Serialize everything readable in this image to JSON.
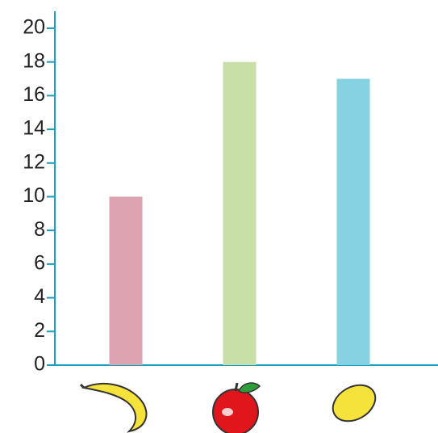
{
  "chart_data": {
    "type": "bar",
    "categories": [
      null,
      null,
      null
    ],
    "values": [
      10,
      18,
      17
    ],
    "colors": [
      "#dea3b1",
      "#c8e0a8",
      "#87d2e2"
    ],
    "axis_color": "#1a9ec0",
    "ylim": [
      0,
      20
    ],
    "yticks": [
      0,
      2,
      4,
      6,
      8,
      10,
      12,
      14,
      16,
      18,
      20
    ]
  }
}
